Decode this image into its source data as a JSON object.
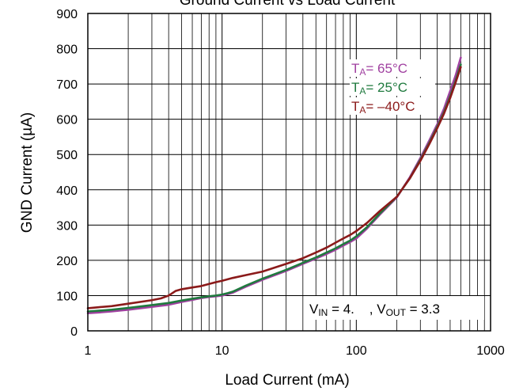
{
  "chart_data": {
    "type": "line",
    "title": "Ground Current vs Load Current",
    "xlabel": "Load Current (mA)",
    "ylabel": "GND Current (µA)",
    "xscale": "log",
    "xlim": [
      1,
      1000
    ],
    "ylim": [
      0,
      900
    ],
    "x_ticks": [
      "1",
      "10",
      "100",
      "1000"
    ],
    "y_ticks": [
      "0",
      "100",
      "200",
      "300",
      "400",
      "500",
      "600",
      "700",
      "800",
      "900"
    ],
    "grid": true,
    "legend_position": "top-right",
    "series": [
      {
        "name": "TA = 65°C",
        "name_parts": {
          "main": "T",
          "sub": "A",
          "rest": "= 65°C"
        },
        "color": "#a040a0",
        "x": [
          1,
          1.2,
          1.5,
          2,
          3,
          4,
          5,
          6,
          7,
          8,
          9,
          10,
          11,
          12,
          15,
          20,
          30,
          40,
          50,
          60,
          70,
          80,
          90,
          100,
          120,
          150,
          200,
          250,
          300,
          350,
          400,
          450,
          500,
          550,
          600
        ],
        "y": [
          50,
          52,
          55,
          60,
          68,
          74,
          82,
          88,
          93,
          96,
          98,
          100,
          104,
          108,
          125,
          145,
          170,
          190,
          205,
          218,
          230,
          242,
          252,
          262,
          290,
          330,
          378,
          435,
          490,
          540,
          585,
          630,
          680,
          725,
          775
        ]
      },
      {
        "name": "TA = 25°C",
        "name_parts": {
          "main": "T",
          "sub": "A",
          "rest": "= 25°C"
        },
        "color": "#1f7a3e",
        "x": [
          1,
          1.2,
          1.5,
          2,
          3,
          4,
          5,
          6,
          7,
          8,
          9,
          10,
          11,
          12,
          15,
          20,
          30,
          40,
          50,
          60,
          70,
          80,
          90,
          100,
          120,
          150,
          200,
          250,
          300,
          350,
          400,
          450,
          500,
          550,
          600
        ],
        "y": [
          55,
          57,
          60,
          65,
          73,
          79,
          86,
          91,
          95,
          98,
          100,
          103,
          107,
          111,
          128,
          148,
          173,
          193,
          208,
          222,
          234,
          246,
          256,
          268,
          294,
          333,
          380,
          432,
          485,
          533,
          578,
          620,
          665,
          710,
          755
        ]
      },
      {
        "name": "TA = –40°C",
        "name_parts": {
          "main": "T",
          "sub": "A",
          "rest": "= –40°C"
        },
        "color": "#8b1a1a",
        "x": [
          1,
          1.2,
          1.5,
          2,
          3,
          3.5,
          4,
          4.5,
          5,
          6,
          7,
          8,
          9,
          10,
          12,
          15,
          20,
          30,
          40,
          50,
          60,
          70,
          80,
          90,
          100,
          120,
          150,
          200,
          250,
          300,
          350,
          400,
          450,
          500,
          550,
          600
        ],
        "y": [
          64,
          67,
          70,
          77,
          87,
          92,
          100,
          113,
          118,
          123,
          127,
          133,
          138,
          142,
          150,
          158,
          168,
          190,
          206,
          222,
          236,
          250,
          262,
          272,
          283,
          306,
          340,
          380,
          432,
          482,
          530,
          574,
          616,
          660,
          705,
          748
        ]
      }
    ],
    "annotations": [
      {
        "text": "VIN = 4.  , VOUT = 3.3",
        "parts": [
          {
            "t": "V",
            "sub": false
          },
          {
            "t": "IN",
            "sub": true
          },
          {
            "t": " = 4.    , V",
            "sub": false
          },
          {
            "t": "OUT",
            "sub": true
          },
          {
            "t": " = 3.3",
            "sub": false
          }
        ]
      }
    ]
  }
}
